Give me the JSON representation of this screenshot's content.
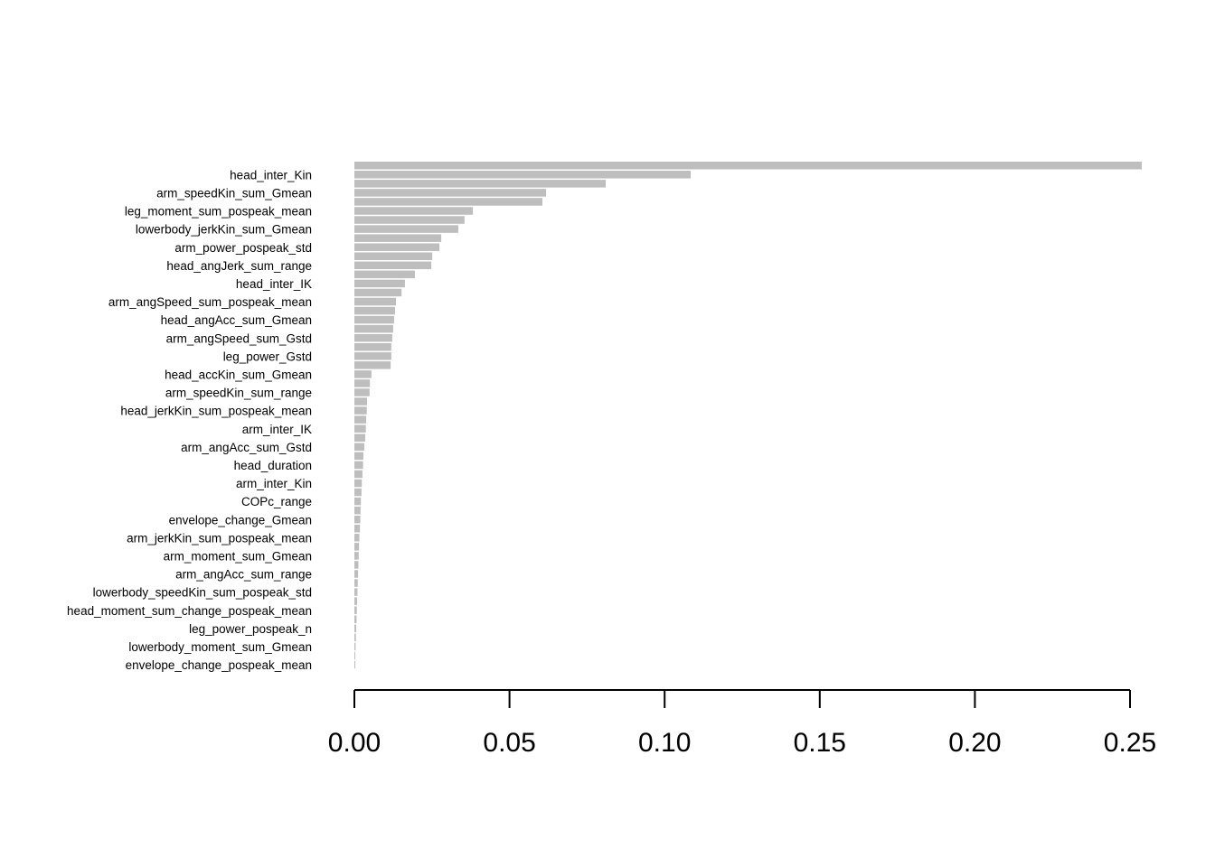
{
  "chart_data": {
    "type": "barh",
    "color": "#bebebe",
    "categories": [
      null,
      "head_inter_Kin",
      null,
      "arm_speedKin_sum_Gmean",
      null,
      "leg_moment_sum_pospeak_mean",
      null,
      "lowerbody_jerkKin_sum_Gmean",
      null,
      "arm_power_pospeak_std",
      null,
      "head_angJerk_sum_range",
      null,
      "head_inter_IK",
      null,
      "arm_angSpeed_sum_pospeak_mean",
      null,
      "head_angAcc_sum_Gmean",
      null,
      "arm_angSpeed_sum_Gstd",
      null,
      "leg_power_Gstd",
      null,
      "head_accKin_sum_Gmean",
      null,
      "arm_speedKin_sum_range",
      null,
      "head_jerkKin_sum_pospeak_mean",
      null,
      "arm_inter_IK",
      null,
      "arm_angAcc_sum_Gstd",
      null,
      "head_duration",
      null,
      "arm_inter_Kin",
      null,
      "COPc_range",
      null,
      "envelope_change_Gmean",
      null,
      "arm_jerkKin_sum_pospeak_mean",
      null,
      "arm_moment_sum_Gmean",
      null,
      "arm_angAcc_sum_range",
      null,
      "lowerbody_speedKin_sum_pospeak_std",
      null,
      "head_moment_sum_change_pospeak_mean",
      null,
      "leg_power_pospeak_n",
      null,
      "lowerbody_moment_sum_Gmean",
      null,
      "envelope_change_pospeak_mean"
    ],
    "values": [
      0.2538,
      0.1084,
      0.081,
      0.0618,
      0.0606,
      0.0382,
      0.0355,
      0.0335,
      0.028,
      0.0274,
      0.0251,
      0.0248,
      0.0195,
      0.0163,
      0.0152,
      0.0134,
      0.0131,
      0.0128,
      0.0125,
      0.0122,
      0.0119,
      0.0119,
      0.0117,
      0.0055,
      0.005,
      0.0049,
      0.0041,
      0.004,
      0.0038,
      0.0037,
      0.0035,
      0.0032,
      0.0029,
      0.0028,
      0.0026,
      0.0024,
      0.0023,
      0.0021,
      0.002,
      0.0019,
      0.0018,
      0.0016,
      0.0015,
      0.0014,
      0.0013,
      0.0012,
      0.0011,
      0.001,
      0.0009,
      0.0008,
      0.0007,
      0.0006,
      0.0005,
      0.0004,
      0.0003,
      0.0003
    ],
    "xlim": [
      0,
      0.25
    ],
    "xticks": [
      {
        "value": 0,
        "label": "0.00"
      },
      {
        "value": 0.05,
        "label": "0.05"
      },
      {
        "value": 0.1,
        "label": "0.10"
      },
      {
        "value": 0.15,
        "label": "0.15"
      },
      {
        "value": 0.2,
        "label": "0.20"
      },
      {
        "value": 0.25,
        "label": "0.25"
      }
    ]
  }
}
